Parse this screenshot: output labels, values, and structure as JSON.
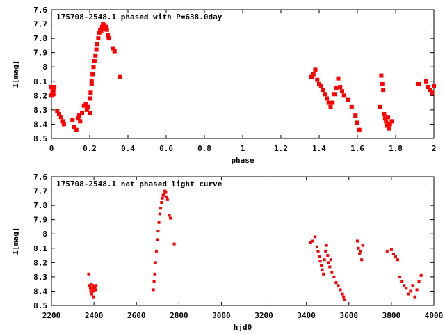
{
  "chart_data": [
    {
      "type": "scatter",
      "title": "175708-2548.1 phased with P=638.0day",
      "xlabel": "phase",
      "ylabel": "I[mag]",
      "xlim": [
        0,
        2
      ],
      "ylim": [
        8.5,
        7.6
      ],
      "y_inverted": true,
      "grid": false,
      "marker_color": "#ff0000",
      "x_ticks": [
        "0",
        "0.2",
        "0.4",
        "0.6",
        "0.8",
        "1",
        "1.2",
        "1.4",
        "1.6",
        "1.8",
        "2"
      ],
      "x_tick_values": [
        0,
        0.2,
        0.4,
        0.6,
        0.8,
        1.0,
        1.2,
        1.4,
        1.6,
        1.8,
        2.0
      ],
      "y_ticks": [
        "7.6",
        "7.7",
        "7.8",
        "7.9",
        "8",
        "8.1",
        "8.2",
        "8.3",
        "8.4",
        "8.5"
      ],
      "y_tick_values": [
        7.6,
        7.7,
        7.8,
        7.9,
        8.0,
        8.1,
        8.2,
        8.3,
        8.4,
        8.5
      ],
      "series": [
        {
          "x": [
            0.0,
            0.0,
            0.005,
            0.005,
            0.01,
            0.01,
            0.015,
            0.03,
            0.04,
            0.05,
            0.06,
            0.065,
            0.11,
            0.12,
            0.13,
            0.14,
            0.145,
            0.15,
            0.16,
            0.17,
            0.18,
            0.185,
            0.19,
            0.2,
            0.2,
            0.205,
            0.21,
            0.21,
            0.215,
            0.22,
            0.225,
            0.23,
            0.235,
            0.24,
            0.245,
            0.25,
            0.255,
            0.26,
            0.265,
            0.27,
            0.275,
            0.28,
            0.285,
            0.29,
            0.295,
            0.3,
            0.32,
            0.33,
            0.36,
            1.36,
            1.37,
            1.38,
            1.39,
            1.4,
            1.41,
            1.42,
            1.43,
            1.44,
            1.45,
            1.46,
            1.47,
            1.48,
            1.49,
            1.5,
            1.51,
            1.52,
            1.53,
            1.55,
            1.57,
            1.59,
            1.6,
            1.61,
            1.72,
            1.725,
            1.73,
            1.735,
            1.74,
            1.745,
            1.75,
            1.755,
            1.76,
            1.765,
            1.77,
            1.78,
            1.92,
            1.96,
            1.97,
            1.98,
            1.99,
            2.0
          ],
          "y": [
            8.14,
            8.2,
            8.15,
            8.18,
            8.16,
            8.19,
            8.14,
            8.31,
            8.33,
            8.35,
            8.38,
            8.4,
            8.37,
            8.42,
            8.44,
            8.36,
            8.34,
            8.38,
            8.32,
            8.27,
            8.26,
            8.3,
            8.28,
            8.32,
            8.22,
            8.18,
            8.12,
            8.1,
            8.05,
            8.0,
            7.96,
            7.92,
            7.88,
            7.84,
            7.8,
            7.76,
            7.74,
            7.75,
            7.72,
            7.7,
            7.71,
            7.73,
            7.72,
            7.74,
            7.78,
            7.8,
            7.87,
            7.89,
            8.07,
            8.07,
            8.05,
            8.02,
            8.09,
            8.12,
            8.13,
            8.16,
            8.19,
            8.22,
            8.25,
            8.28,
            8.25,
            8.19,
            8.15,
            8.08,
            8.14,
            8.17,
            8.2,
            8.23,
            8.28,
            8.34,
            8.39,
            8.44,
            8.28,
            8.06,
            8.12,
            8.16,
            8.33,
            8.36,
            8.38,
            8.41,
            8.35,
            8.43,
            8.4,
            8.38,
            8.12,
            8.1,
            8.14,
            8.16,
            8.18,
            8.13
          ]
        }
      ]
    },
    {
      "type": "scatter",
      "title": "175708-2548.1 not phased light curve",
      "xlabel": "hjd0",
      "ylabel": "I[mag]",
      "xlim": [
        2200,
        4000
      ],
      "ylim": [
        8.5,
        7.6
      ],
      "y_inverted": true,
      "grid": false,
      "marker_color": "#ff0000",
      "x_ticks": [
        "2200",
        "2400",
        "2600",
        "2800",
        "3000",
        "3200",
        "3400",
        "3600",
        "3800",
        "4000"
      ],
      "x_tick_values": [
        2200,
        2400,
        2600,
        2800,
        3000,
        3200,
        3400,
        3600,
        3800,
        4000
      ],
      "y_ticks": [
        "7.6",
        "7.7",
        "7.8",
        "7.9",
        "8",
        "8.1",
        "8.2",
        "8.3",
        "8.4",
        "8.5"
      ],
      "y_tick_values": [
        7.6,
        7.7,
        7.8,
        7.9,
        8.0,
        8.1,
        8.2,
        8.3,
        8.4,
        8.5
      ],
      "series": [
        {
          "x": [
            2375,
            2380,
            2383,
            2385,
            2388,
            2390,
            2392,
            2395,
            2398,
            2400,
            2402,
            2405,
            2408,
            2410,
            2680,
            2683,
            2686,
            2690,
            2694,
            2698,
            2702,
            2706,
            2710,
            2714,
            2718,
            2722,
            2726,
            2730,
            2734,
            2738,
            2742,
            2746,
            2755,
            2760,
            2778,
            3420,
            3430,
            3440,
            3450,
            3455,
            3460,
            3465,
            3470,
            3475,
            3480,
            3485,
            3490,
            3495,
            3500,
            3505,
            3510,
            3515,
            3520,
            3530,
            3540,
            3550,
            3560,
            3570,
            3575,
            3580,
            3640,
            3645,
            3650,
            3655,
            3660,
            3665,
            3780,
            3800,
            3810,
            3820,
            3830,
            3840,
            3850,
            3860,
            3870,
            3880,
            3890,
            3900,
            3910,
            3920,
            3930,
            3940
          ],
          "y": [
            8.28,
            8.36,
            8.38,
            8.4,
            8.35,
            8.42,
            8.38,
            8.36,
            8.44,
            8.4,
            8.38,
            8.37,
            8.39,
            8.36,
            8.39,
            8.33,
            8.28,
            8.2,
            8.12,
            8.04,
            7.98,
            7.92,
            7.86,
            7.82,
            7.78,
            7.75,
            7.73,
            7.72,
            7.7,
            7.71,
            7.74,
            7.76,
            7.87,
            7.89,
            8.07,
            8.06,
            8.05,
            8.02,
            8.09,
            8.12,
            8.16,
            8.19,
            8.22,
            8.25,
            8.28,
            8.18,
            8.12,
            8.08,
            8.15,
            8.2,
            8.23,
            8.18,
            8.27,
            8.3,
            8.34,
            8.36,
            8.39,
            8.42,
            8.44,
            8.46,
            8.05,
            8.1,
            8.14,
            8.12,
            8.18,
            8.08,
            8.12,
            8.11,
            8.14,
            8.16,
            8.18,
            8.3,
            8.33,
            8.36,
            8.38,
            8.42,
            8.4,
            8.36,
            8.44,
            8.39,
            8.33,
            8.29
          ]
        }
      ]
    }
  ]
}
